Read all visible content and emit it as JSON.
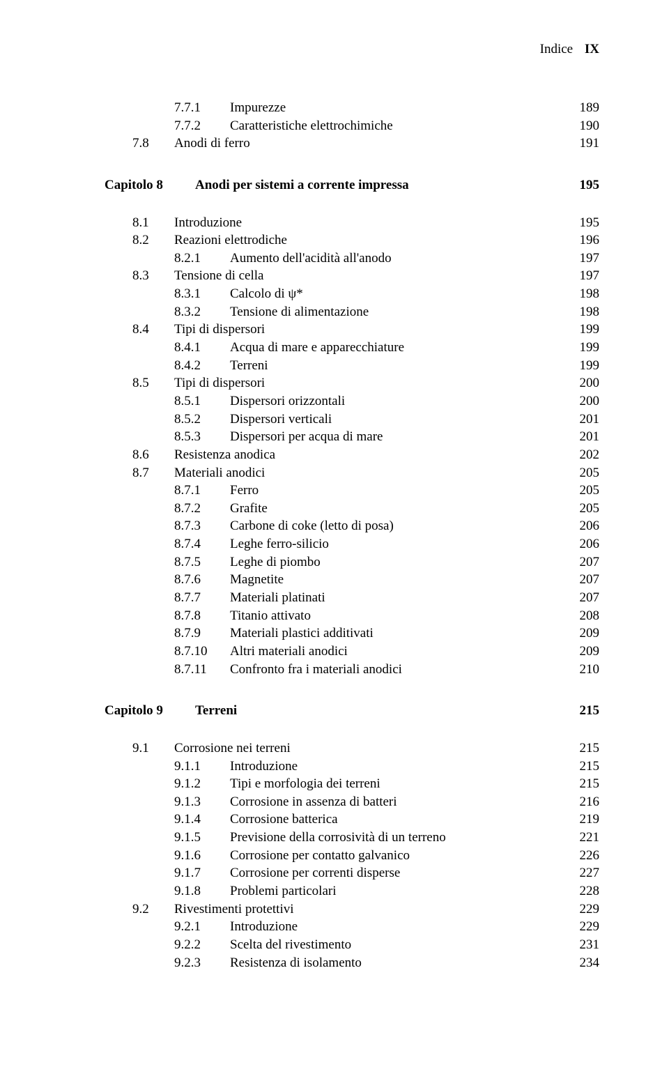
{
  "header": {
    "breadcrumb": "Indice",
    "page_marker": "IX"
  },
  "groups": [
    {
      "pre_gap": true,
      "entries": [
        {
          "lvl": 2,
          "num": "7.7.1",
          "label": "Impurezze",
          "page": "189"
        },
        {
          "lvl": 2,
          "num": "7.7.2",
          "label": "Caratteristiche elettrochimiche",
          "page": "190"
        },
        {
          "lvl": 1,
          "num": "7.8",
          "label": "Anodi di ferro",
          "page": "191"
        }
      ]
    },
    {
      "chapter": {
        "num": "Capitolo 8",
        "label": "Anodi per sistemi a corrente impressa",
        "page": "195"
      },
      "entries": [
        {
          "lvl": 1,
          "num": "8.1",
          "label": "Introduzione",
          "page": "195"
        },
        {
          "lvl": 1,
          "num": "8.2",
          "label": "Reazioni elettrodiche",
          "page": "196"
        },
        {
          "lvl": 2,
          "num": "8.2.1",
          "label": "Aumento dell'acidità all'anodo",
          "page": "197"
        },
        {
          "lvl": 1,
          "num": "8.3",
          "label": "Tensione di cella",
          "page": "197"
        },
        {
          "lvl": 2,
          "num": "8.3.1",
          "label": "Calcolo di ψ*",
          "page": "198"
        },
        {
          "lvl": 2,
          "num": "8.3.2",
          "label": "Tensione di alimentazione",
          "page": "198"
        },
        {
          "lvl": 1,
          "num": "8.4",
          "label": "Tipi di dispersori",
          "page": "199"
        },
        {
          "lvl": 2,
          "num": "8.4.1",
          "label": "Acqua di mare e apparecchiature",
          "page": "199"
        },
        {
          "lvl": 2,
          "num": "8.4.2",
          "label": "Terreni",
          "page": "199"
        },
        {
          "lvl": 1,
          "num": "8.5",
          "label": "Tipi di dispersori",
          "page": "200"
        },
        {
          "lvl": 2,
          "num": "8.5.1",
          "label": "Dispersori orizzontali",
          "page": "200"
        },
        {
          "lvl": 2,
          "num": "8.5.2",
          "label": "Dispersori verticali",
          "page": "201"
        },
        {
          "lvl": 2,
          "num": "8.5.3",
          "label": "Dispersori per acqua di mare",
          "page": "201"
        },
        {
          "lvl": 1,
          "num": "8.6",
          "label": "Resistenza anodica",
          "page": "202"
        },
        {
          "lvl": 1,
          "num": "8.7",
          "label": "Materiali anodici",
          "page": "205"
        },
        {
          "lvl": 2,
          "num": "8.7.1",
          "label": "Ferro",
          "page": "205"
        },
        {
          "lvl": 2,
          "num": "8.7.2",
          "label": "Grafite",
          "page": "205"
        },
        {
          "lvl": 2,
          "num": "8.7.3",
          "label": "Carbone di coke (letto di posa)",
          "page": "206"
        },
        {
          "lvl": 2,
          "num": "8.7.4",
          "label": "Leghe ferro-silicio",
          "page": "206"
        },
        {
          "lvl": 2,
          "num": "8.7.5",
          "label": "Leghe di piombo",
          "page": "207"
        },
        {
          "lvl": 2,
          "num": "8.7.6",
          "label": "Magnetite",
          "page": "207"
        },
        {
          "lvl": 2,
          "num": "8.7.7",
          "label": "Materiali platinati",
          "page": "207"
        },
        {
          "lvl": 2,
          "num": "8.7.8",
          "label": "Titanio attivato",
          "page": "208"
        },
        {
          "lvl": 2,
          "num": "8.7.9",
          "label": "Materiali plastici additivati",
          "page": "209"
        },
        {
          "lvl": 2,
          "num": "8.7.10",
          "label": "Altri materiali anodici",
          "page": "209"
        },
        {
          "lvl": 2,
          "num": "8.7.11",
          "label": "Confronto fra i materiali anodici",
          "page": "210"
        }
      ]
    },
    {
      "chapter": {
        "num": "Capitolo 9",
        "label": "Terreni",
        "page": "215"
      },
      "entries": [
        {
          "lvl": 1,
          "num": "9.1",
          "label": "Corrosione nei terreni",
          "page": "215"
        },
        {
          "lvl": 2,
          "num": "9.1.1",
          "label": "Introduzione",
          "page": "215"
        },
        {
          "lvl": 2,
          "num": "9.1.2",
          "label": "Tipi e morfologia dei terreni",
          "page": "215"
        },
        {
          "lvl": 2,
          "num": "9.1.3",
          "label": "Corrosione in assenza di batteri",
          "page": "216"
        },
        {
          "lvl": 2,
          "num": "9.1.4",
          "label": "Corrosione batterica",
          "page": "219"
        },
        {
          "lvl": 2,
          "num": "9.1.5",
          "label": "Previsione della corrosività di un terreno",
          "page": "221"
        },
        {
          "lvl": 2,
          "num": "9.1.6",
          "label": "Corrosione per contatto galvanico",
          "page": "226"
        },
        {
          "lvl": 2,
          "num": "9.1.7",
          "label": "Corrosione per correnti disperse",
          "page": "227"
        },
        {
          "lvl": 2,
          "num": "9.1.8",
          "label": "Problemi particolari",
          "page": "228"
        },
        {
          "lvl": 1,
          "num": "9.2",
          "label": "Rivestimenti protettivi",
          "page": "229"
        },
        {
          "lvl": 2,
          "num": "9.2.1",
          "label": "Introduzione",
          "page": "229"
        },
        {
          "lvl": 2,
          "num": "9.2.2",
          "label": "Scelta del rivestimento",
          "page": "231"
        },
        {
          "lvl": 2,
          "num": "9.2.3",
          "label": "Resistenza di isolamento",
          "page": "234"
        }
      ]
    }
  ]
}
